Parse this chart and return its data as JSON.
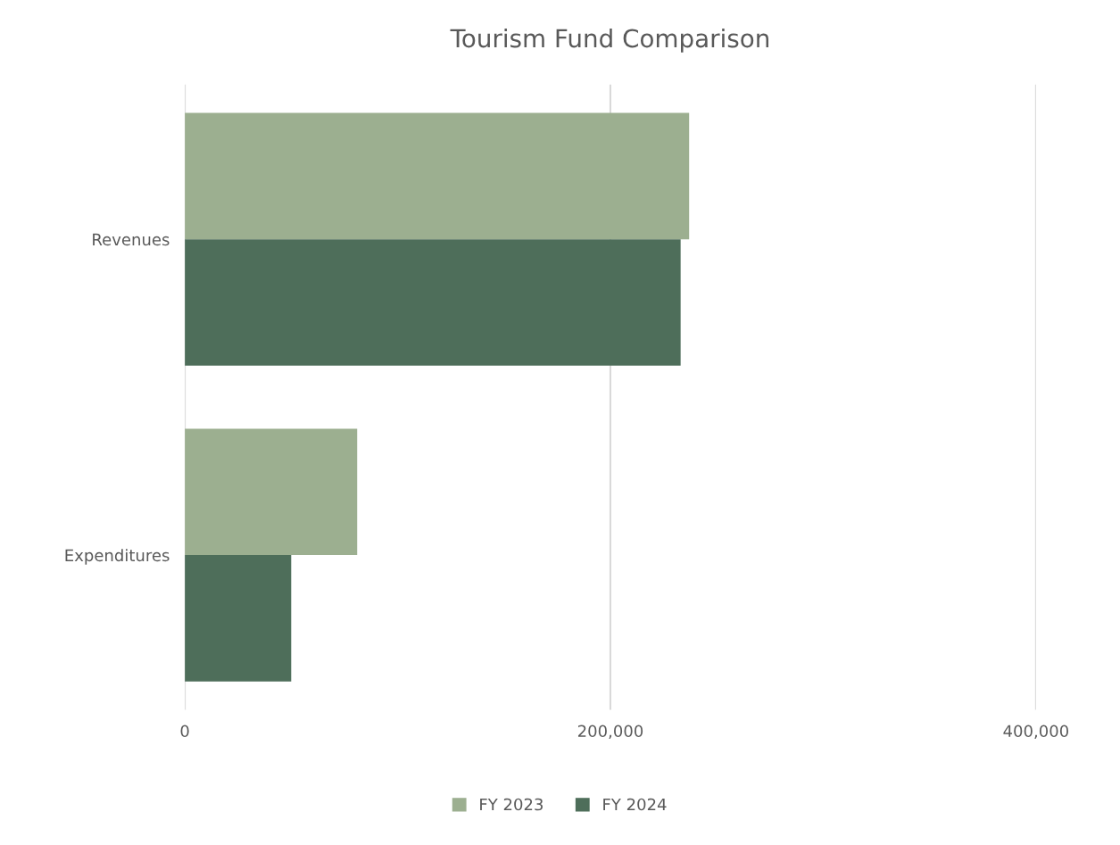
{
  "chart_data": {
    "type": "bar",
    "orientation": "horizontal",
    "title": "Tourism Fund Comparison",
    "categories": [
      "Revenues",
      "Expenditures"
    ],
    "series": [
      {
        "name": "FY 2023",
        "color": "#9caf90",
        "values": [
          237000,
          81000
        ]
      },
      {
        "name": "FY 2024",
        "color": "#4e6e5a",
        "values": [
          233000,
          50000
        ]
      }
    ],
    "xlim": [
      0,
      400000
    ],
    "xticks": [
      {
        "value": 0,
        "label": "0"
      },
      {
        "value": 200000,
        "label": "200,000"
      },
      {
        "value": 400000,
        "label": "400,000"
      }
    ],
    "grid": "x",
    "legend": "bottom"
  }
}
